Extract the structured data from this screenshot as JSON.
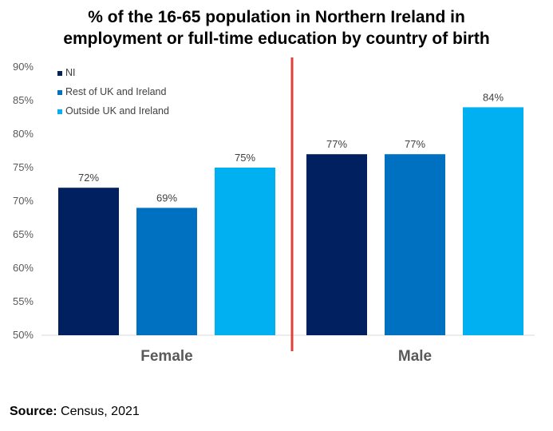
{
  "title_lines": [
    "% of the 16-65 population in Northern Ireland in",
    "employment or full-time education by country of birth"
  ],
  "source": {
    "label": "Source:",
    "text": "Census, 2021"
  },
  "chart_data": {
    "type": "bar",
    "categories": [
      "Female",
      "Male"
    ],
    "series": [
      {
        "name": "NI",
        "color": "#002060",
        "values": [
          72,
          77
        ],
        "labels": [
          "72%",
          "77%"
        ]
      },
      {
        "name": "Rest of UK and Ireland",
        "color": "#0070C0",
        "values": [
          69,
          77
        ],
        "labels": [
          "69%",
          "77%"
        ]
      },
      {
        "name": "Outside UK and Ireland",
        "color": "#00B0F0",
        "values": [
          75,
          84
        ],
        "labels": [
          "75%",
          "84%"
        ]
      }
    ],
    "ylim": [
      50,
      90
    ],
    "yticks": [
      "50%",
      "55%",
      "60%",
      "65%",
      "70%",
      "75%",
      "80%",
      "85%",
      "90%"
    ],
    "ytick_values": [
      50,
      55,
      60,
      65,
      70,
      75,
      80,
      85,
      90
    ],
    "grid": false,
    "legend_position": "top-left",
    "divider_color": "#E0403A"
  }
}
